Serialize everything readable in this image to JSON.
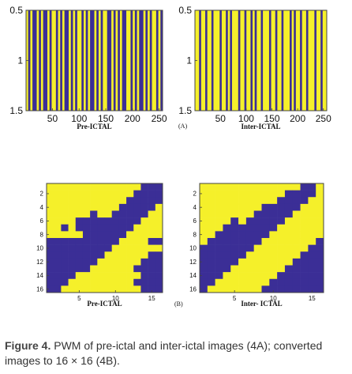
{
  "colors": {
    "yellow": "#f5f02a",
    "blue": "#3b2e96",
    "frame": "#444444"
  },
  "chart_data": [
    {
      "type": "heatmap",
      "panel": "A-left",
      "xlabel": "Pre-ICTAL",
      "xticks": [
        "50",
        "100",
        "150",
        "200",
        "250"
      ],
      "yticks": [
        "0.5",
        "1",
        "1.5"
      ],
      "xlim": [
        0.5,
        256.5
      ],
      "ylim": [
        0.5,
        1.5
      ],
      "values": [
        [
          1,
          0,
          1,
          0,
          0,
          1,
          0,
          1,
          0,
          0,
          1,
          0,
          1,
          1,
          0,
          1,
          0,
          1,
          0,
          0,
          1,
          0,
          1,
          0,
          1,
          1,
          0,
          1,
          0,
          1,
          0,
          0,
          1,
          0,
          1,
          0,
          1,
          1,
          0,
          0,
          1,
          0,
          1,
          0,
          1,
          0,
          0,
          1,
          1,
          0,
          1,
          0,
          1,
          0,
          0,
          1,
          0,
          1,
          0,
          1,
          1,
          0,
          1,
          0
        ]
      ]
    },
    {
      "type": "heatmap",
      "panel": "A-right",
      "xlabel": "Inter-ICTAL",
      "xticks": [
        "50",
        "100",
        "150",
        "200",
        "250"
      ],
      "yticks": [
        "0.5",
        "1",
        "1.5"
      ],
      "xlim": [
        0.5,
        256.5
      ],
      "ylim": [
        0.5,
        1.5
      ],
      "values": [
        [
          1,
          1,
          0,
          1,
          1,
          0,
          1,
          1,
          0,
          1,
          1,
          1,
          0,
          1,
          1,
          0,
          1,
          0,
          1,
          1,
          1,
          0,
          1,
          1,
          0,
          1,
          1,
          0,
          1,
          0,
          1,
          1,
          0,
          1,
          1,
          1,
          0,
          1,
          1,
          0,
          1,
          1,
          0,
          1,
          1,
          1,
          0,
          1,
          0,
          1,
          1,
          0,
          1,
          1,
          0,
          1,
          1,
          1,
          0,
          1,
          1,
          0,
          1,
          1
        ]
      ]
    },
    {
      "type": "heatmap",
      "panel": "B-left",
      "xlabel": "Pre-ICTAL",
      "xticks": [
        "5",
        "10",
        "15"
      ],
      "yticks": [
        "2",
        "4",
        "6",
        "8",
        "10",
        "12",
        "14",
        "16"
      ],
      "xlim": [
        0.5,
        16.5
      ],
      "ylim": [
        0.5,
        16.5
      ],
      "values": [
        [
          1,
          1,
          1,
          1,
          1,
          1,
          1,
          1,
          1,
          1,
          1,
          1,
          1,
          0,
          0,
          0
        ],
        [
          1,
          1,
          1,
          1,
          1,
          1,
          1,
          1,
          1,
          1,
          1,
          1,
          0,
          0,
          0,
          0
        ],
        [
          1,
          1,
          1,
          1,
          1,
          1,
          1,
          1,
          1,
          1,
          1,
          0,
          0,
          0,
          0,
          0
        ],
        [
          1,
          1,
          1,
          1,
          1,
          1,
          1,
          1,
          1,
          1,
          0,
          0,
          0,
          0,
          0,
          1
        ],
        [
          1,
          1,
          1,
          1,
          1,
          1,
          0,
          1,
          1,
          0,
          0,
          0,
          0,
          0,
          1,
          1
        ],
        [
          1,
          1,
          1,
          1,
          0,
          0,
          0,
          0,
          0,
          0,
          0,
          0,
          0,
          1,
          1,
          1
        ],
        [
          1,
          1,
          0,
          1,
          0,
          0,
          0,
          0,
          0,
          0,
          0,
          0,
          1,
          1,
          1,
          1
        ],
        [
          1,
          1,
          1,
          1,
          1,
          0,
          0,
          0,
          0,
          0,
          0,
          1,
          1,
          1,
          1,
          1
        ],
        [
          0,
          0,
          0,
          0,
          0,
          0,
          0,
          0,
          0,
          0,
          1,
          1,
          1,
          1,
          0,
          0
        ],
        [
          0,
          0,
          0,
          0,
          0,
          0,
          0,
          0,
          0,
          1,
          1,
          1,
          1,
          1,
          1,
          1
        ],
        [
          0,
          0,
          0,
          0,
          0,
          0,
          0,
          0,
          1,
          1,
          1,
          1,
          1,
          1,
          0,
          0
        ],
        [
          0,
          0,
          0,
          0,
          0,
          0,
          0,
          1,
          1,
          1,
          1,
          1,
          1,
          0,
          0,
          0
        ],
        [
          0,
          0,
          0,
          0,
          0,
          0,
          1,
          1,
          1,
          1,
          1,
          1,
          0,
          0,
          0,
          0
        ],
        [
          0,
          0,
          0,
          0,
          1,
          1,
          1,
          1,
          1,
          1,
          1,
          1,
          1,
          0,
          0,
          0
        ],
        [
          0,
          0,
          0,
          1,
          1,
          1,
          1,
          1,
          1,
          1,
          1,
          1,
          0,
          0,
          0,
          0
        ],
        [
          0,
          0,
          1,
          1,
          1,
          1,
          1,
          1,
          1,
          1,
          1,
          1,
          1,
          0,
          0,
          0
        ]
      ]
    },
    {
      "type": "heatmap",
      "panel": "B-right",
      "xlabel": "Inter- ICTAL",
      "xticks": [
        "5",
        "10",
        "15"
      ],
      "yticks": [
        "2",
        "4",
        "6",
        "8",
        "10",
        "12",
        "14",
        "16"
      ],
      "xlim": [
        0.5,
        16.5
      ],
      "ylim": [
        0.5,
        16.5
      ],
      "values": [
        [
          1,
          1,
          1,
          1,
          1,
          1,
          1,
          1,
          1,
          1,
          1,
          1,
          1,
          0,
          0,
          1
        ],
        [
          1,
          1,
          1,
          1,
          1,
          1,
          1,
          1,
          1,
          1,
          1,
          0,
          0,
          0,
          0,
          1
        ],
        [
          1,
          1,
          1,
          1,
          1,
          1,
          1,
          1,
          1,
          1,
          0,
          0,
          0,
          0,
          1,
          1
        ],
        [
          1,
          1,
          1,
          1,
          1,
          1,
          1,
          1,
          0,
          0,
          0,
          0,
          0,
          1,
          1,
          1
        ],
        [
          1,
          1,
          1,
          1,
          1,
          1,
          1,
          0,
          0,
          0,
          0,
          0,
          1,
          1,
          1,
          1
        ],
        [
          1,
          1,
          1,
          1,
          0,
          1,
          0,
          0,
          0,
          0,
          0,
          1,
          1,
          1,
          1,
          1
        ],
        [
          1,
          1,
          1,
          0,
          0,
          0,
          0,
          0,
          0,
          0,
          1,
          1,
          1,
          1,
          1,
          1
        ],
        [
          1,
          1,
          0,
          0,
          0,
          0,
          0,
          0,
          0,
          1,
          1,
          1,
          1,
          1,
          1,
          1
        ],
        [
          1,
          0,
          0,
          0,
          0,
          0,
          0,
          0,
          1,
          1,
          1,
          1,
          1,
          1,
          1,
          0
        ],
        [
          0,
          0,
          0,
          0,
          0,
          0,
          0,
          1,
          1,
          1,
          1,
          1,
          1,
          1,
          0,
          0
        ],
        [
          0,
          0,
          0,
          0,
          0,
          0,
          1,
          1,
          1,
          1,
          1,
          1,
          1,
          0,
          0,
          0
        ],
        [
          0,
          0,
          0,
          0,
          0,
          1,
          1,
          1,
          1,
          1,
          1,
          1,
          0,
          0,
          0,
          0
        ],
        [
          0,
          0,
          0,
          0,
          1,
          1,
          1,
          1,
          1,
          1,
          1,
          0,
          0,
          0,
          0,
          0
        ],
        [
          0,
          0,
          0,
          1,
          1,
          1,
          1,
          1,
          1,
          1,
          0,
          0,
          0,
          0,
          0,
          0
        ],
        [
          0,
          0,
          1,
          1,
          1,
          1,
          1,
          1,
          1,
          0,
          0,
          0,
          0,
          0,
          0,
          0
        ],
        [
          0,
          1,
          1,
          1,
          1,
          1,
          1,
          1,
          0,
          0,
          0,
          0,
          0,
          0,
          0,
          0
        ]
      ]
    }
  ],
  "panel_labels": {
    "a": "(A)",
    "b": "(B)"
  },
  "caption": {
    "figure_label": "Figure 4.",
    "text": "PWM of pre-ictal and inter-ictal images (4A); converted images to 16 × 16 (4B)."
  }
}
